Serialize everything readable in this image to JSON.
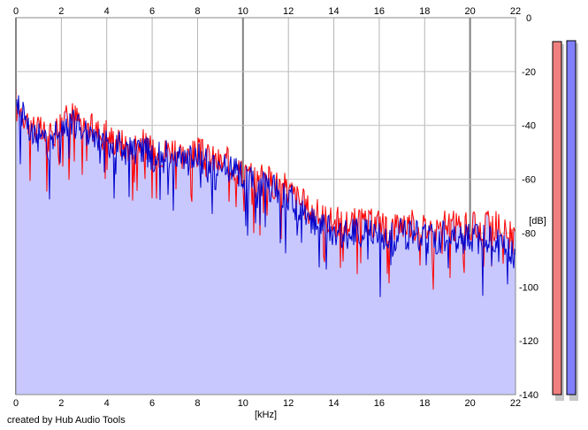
{
  "chart_data": {
    "type": "line",
    "xlabel": "[kHz]",
    "ylabel": "[dB]",
    "x_range": [
      0,
      22
    ],
    "y_range": [
      -140,
      0
    ],
    "x_ticks": [
      0,
      2,
      4,
      6,
      8,
      10,
      12,
      14,
      16,
      18,
      20,
      22
    ],
    "y_ticks": [
      0,
      -20,
      -40,
      -60,
      -80,
      -100,
      -120,
      -140
    ],
    "grid": true,
    "area_fill_color": "#c8c8ff",
    "series": [
      {
        "color": "#ff0000",
        "x": [
          0,
          0.5,
          1,
          1.5,
          2,
          2.5,
          3,
          3.5,
          4,
          4.5,
          5,
          5.5,
          6,
          6.5,
          7,
          7.5,
          8,
          8.5,
          9,
          9.5,
          10,
          10.5,
          11,
          11.5,
          12,
          12.5,
          13,
          13.5,
          14,
          14.5,
          15,
          15.5,
          16,
          16.5,
          17,
          17.5,
          18,
          18.5,
          19,
          19.5,
          20,
          20.5,
          21,
          21.5,
          22
        ],
        "values": [
          -30,
          -38,
          -42,
          -45,
          -38,
          -36,
          -40,
          -42,
          -44,
          -46,
          -48,
          -46,
          -50,
          -50,
          -48,
          -52,
          -50,
          -52,
          -54,
          -54,
          -58,
          -60,
          -60,
          -62,
          -64,
          -68,
          -72,
          -74,
          -76,
          -76,
          -76,
          -77,
          -76,
          -78,
          -76,
          -77,
          -78,
          -78,
          -77,
          -78,
          -78,
          -78,
          -77,
          -78,
          -84
        ]
      },
      {
        "color": "#0000cc",
        "x": [
          0,
          0.5,
          1,
          1.5,
          2,
          2.5,
          3,
          3.5,
          4,
          4.5,
          5,
          5.5,
          6,
          6.5,
          7,
          7.5,
          8,
          8.5,
          9,
          9.5,
          10,
          10.5,
          11,
          11.5,
          12,
          12.5,
          13,
          13.5,
          14,
          14.5,
          15,
          15.5,
          16,
          16.5,
          17,
          17.5,
          18,
          18.5,
          19,
          19.5,
          20,
          20.5,
          21,
          21.5,
          22
        ],
        "values": [
          -32,
          -40,
          -44,
          -48,
          -40,
          -40,
          -42,
          -44,
          -46,
          -48,
          -50,
          -48,
          -52,
          -52,
          -50,
          -54,
          -52,
          -54,
          -56,
          -56,
          -60,
          -62,
          -62,
          -64,
          -66,
          -72,
          -76,
          -78,
          -80,
          -80,
          -80,
          -81,
          -80,
          -82,
          -80,
          -81,
          -82,
          -82,
          -81,
          -82,
          -82,
          -82,
          -81,
          -83,
          -88
        ]
      }
    ],
    "level_meters": [
      {
        "color": "#f08080"
      },
      {
        "color": "#8080ff"
      }
    ]
  },
  "footer": {
    "credit": "created by Hub Audio Tools"
  }
}
